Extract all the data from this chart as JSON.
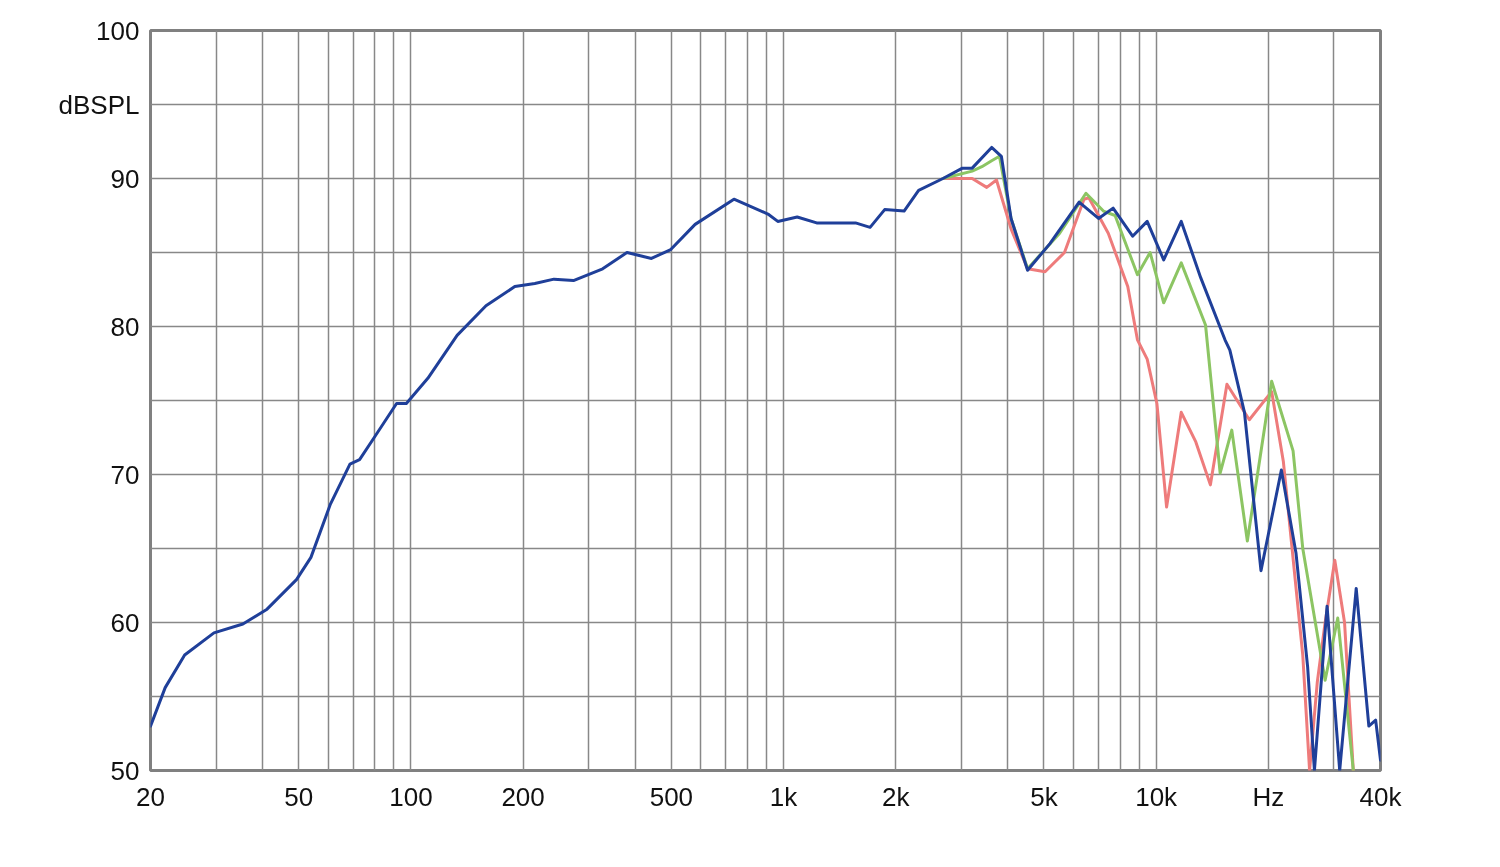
{
  "chart_data": {
    "type": "line",
    "log": "x",
    "grid": true,
    "xlim": [
      20,
      40000
    ],
    "ylim": [
      50,
      100
    ],
    "xticks": [
      20,
      {
        "value": 30,
        "label": null
      },
      {
        "value": 40,
        "label": null
      },
      50,
      {
        "value": 60,
        "label": null
      },
      {
        "value": 70,
        "label": null
      },
      {
        "value": 80,
        "label": null
      },
      {
        "value": 90,
        "label": null
      },
      100,
      200,
      {
        "value": 300,
        "label": null
      },
      {
        "value": 400,
        "label": null
      },
      500,
      {
        "value": 600,
        "label": null
      },
      {
        "value": 700,
        "label": null
      },
      {
        "value": 800,
        "label": null
      },
      {
        "value": 900,
        "label": null
      },
      {
        "value": 1000,
        "label": "1k"
      },
      {
        "value": 2000,
        "label": "2k"
      },
      {
        "value": 3000,
        "label": null
      },
      {
        "value": 4000,
        "label": null
      },
      {
        "value": 5000,
        "label": "5k"
      },
      {
        "value": 6000,
        "label": null
      },
      {
        "value": 7000,
        "label": null
      },
      {
        "value": 8000,
        "label": null
      },
      {
        "value": 9000,
        "label": null
      },
      {
        "value": 10000,
        "label": "10k"
      },
      {
        "value": 20000,
        "label": "Hz"
      },
      {
        "value": 30000,
        "label": null
      },
      {
        "value": 40000,
        "label": "40k"
      }
    ],
    "yticks": [
      50,
      {
        "value": 55,
        "label": null
      },
      60,
      {
        "value": 65,
        "label": null
      },
      70,
      {
        "value": 75,
        "label": null
      },
      80,
      {
        "value": 85,
        "label": null
      },
      90,
      {
        "value": 95,
        "label": "dBSPL"
      },
      100
    ],
    "series": [
      {
        "color": "#ee7b7b",
        "x": [
          2678,
          3208,
          3510,
          3728,
          4079,
          4518,
          5033,
          5675,
          6402,
          6597,
          7438,
          8390,
          8908,
          9460,
          10045,
          10666,
          11677,
          12776,
          13981,
          15486,
          17782,
          20414,
          21940,
          24743,
          25806,
          27074,
          28408,
          30157,
          32031,
          33812
        ],
        "values": [
          90.0,
          90.0,
          89.4,
          89.9,
          86.6,
          83.9,
          83.7,
          85.0,
          88.6,
          88.7,
          86.3,
          82.7,
          79.1,
          77.8,
          74.8,
          67.8,
          74.2,
          72.2,
          69.3,
          76.1,
          73.7,
          75.6,
          70.9,
          57.8,
          50,
          56,
          60,
          64.2,
          60,
          50
        ]
      },
      {
        "color": "#8cc563",
        "x": [
          2678,
          3208,
          3406,
          3618,
          3796,
          4079,
          4518,
          5508,
          6479,
          7218,
          7758,
          8908,
          9632,
          10476,
          11677,
          13567,
          14849,
          15958,
          17568,
          20414,
          23304,
          24743,
          28408,
          30713,
          33812
        ],
        "values": [
          90.0,
          90.5,
          90.8,
          91.2,
          91.5,
          87.3,
          83.9,
          86.3,
          89.0,
          87.8,
          87.5,
          83.5,
          85.0,
          81.6,
          84.3,
          80.1,
          70.1,
          73.0,
          65.5,
          76.3,
          71.6,
          65.0,
          56.1,
          60.3,
          50
        ]
      },
      {
        "color": "#1f3f99",
        "x": [
          20,
          21.9,
          24.7,
          29.6,
          35.4,
          41.1,
          49.3,
          53.9,
          60.8,
          68.6,
          72.8,
          79.7,
          91.5,
          97.2,
          111,
          133,
          159,
          190,
          215,
          242,
          273,
          327,
          380,
          442,
          498,
          579,
          736,
          908,
          965,
          1088,
          1227,
          1560,
          1707,
          1868,
          2106,
          2304,
          2678,
          3020,
          3208,
          3618,
          3842,
          4079,
          4518,
          5186,
          6212,
          7004,
          7664,
          8645,
          9460,
          10476,
          11677,
          13167,
          15300,
          15768,
          17256,
          19112,
          21678,
          23727,
          25498,
          26590,
          28750,
          31085,
          34424,
          37222,
          38821,
          40000
        ],
        "values": [
          53.0,
          55.6,
          57.8,
          59.3,
          59.9,
          60.9,
          62.9,
          64.4,
          68.0,
          70.7,
          71.0,
          72.5,
          74.8,
          74.8,
          76.5,
          79.4,
          81.4,
          82.7,
          82.9,
          83.2,
          83.1,
          83.9,
          85.0,
          84.6,
          85.2,
          86.9,
          88.6,
          87.6,
          87.1,
          87.4,
          87.0,
          87.0,
          86.7,
          87.9,
          87.8,
          89.2,
          90.0,
          90.7,
          90.7,
          92.1,
          91.5,
          87.3,
          83.8,
          85.6,
          88.4,
          87.3,
          88.0,
          86.1,
          87.1,
          84.5,
          87.1,
          83.3,
          79.1,
          78.4,
          74.2,
          63.5,
          70.3,
          64.7,
          57,
          50,
          61.1,
          50,
          62.3,
          53.0,
          53.4,
          50.7
        ]
      }
    ]
  }
}
